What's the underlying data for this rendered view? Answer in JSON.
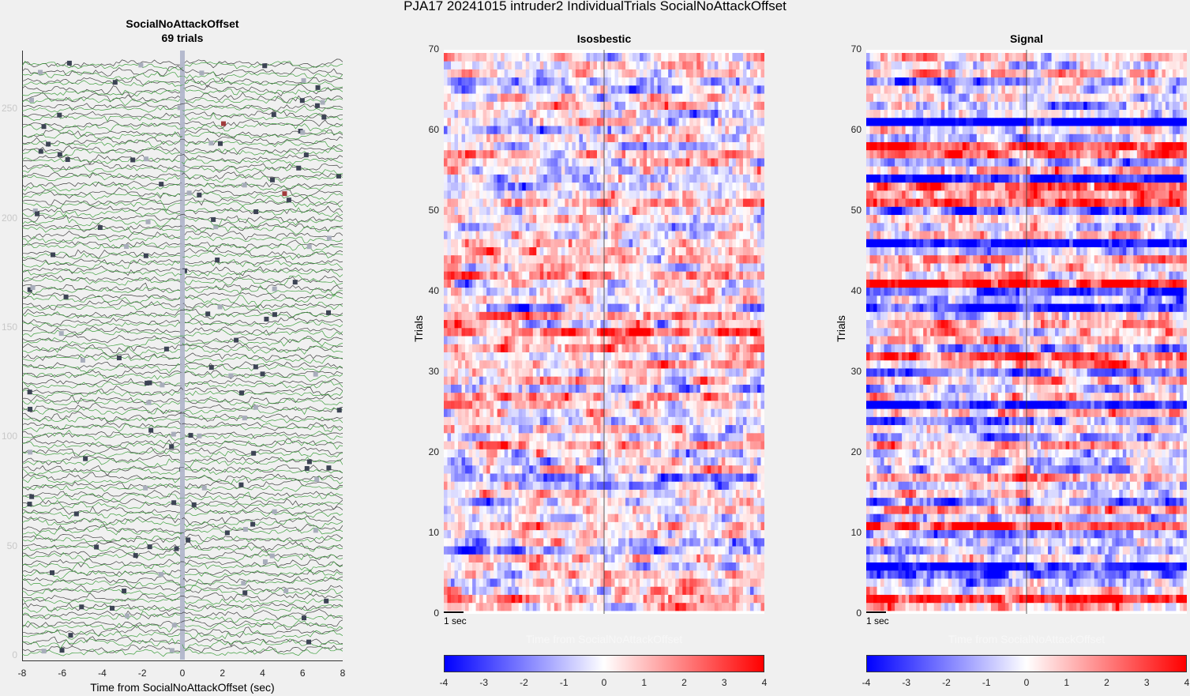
{
  "figure": {
    "title": "PJA17 20241015  intruder2 IndividualTrials SocialNoAttackOffset"
  },
  "chart_data": [
    {
      "type": "line",
      "title": "SocialNoAttackOffset",
      "subtitle": "69 trials",
      "xlabel": "Time from SocialNoAttackOffset (sec)",
      "ylabel": "",
      "xlim": [
        -8,
        8
      ],
      "ylim": [
        0,
        275
      ],
      "x_ticks": [
        "-8",
        "-6",
        "-4",
        "-2",
        "0",
        "2",
        "4",
        "6",
        "8"
      ],
      "y_ticks": [
        "0",
        "50",
        "100",
        "150",
        "200",
        "250"
      ],
      "n_trials": 69,
      "series_colors": {
        "isosbestic": "#3f9f3f",
        "signal": "#404040",
        "event_marker": "#3c4354",
        "center_band": "#aab0c8",
        "highlight_marker": "#a03c3c"
      },
      "grid": false
    },
    {
      "type": "heatmap",
      "title": "Isosbestic",
      "xlabel": "Time from SocialNoAttackOffset",
      "ylabel": "Trials",
      "ylim": [
        0,
        70
      ],
      "y_ticks": [
        "0",
        "10",
        "20",
        "30",
        "40",
        "50",
        "60",
        "70"
      ],
      "scale_bar_label": "1 sec",
      "colormap": [
        "#0000ff",
        "#ffffff",
        "#ff0000"
      ],
      "clim": [
        -4,
        4
      ],
      "colorbar_ticks": [
        "-4",
        "-3",
        "-2",
        "-1",
        "0",
        "1",
        "2",
        "3",
        "4"
      ]
    },
    {
      "type": "heatmap",
      "title": "Signal",
      "xlabel": "Time from SocialNoAttackOffset",
      "ylabel": "Trials",
      "ylim": [
        0,
        70
      ],
      "y_ticks": [
        "0",
        "10",
        "20",
        "30",
        "40",
        "50",
        "60",
        "70"
      ],
      "scale_bar_label": "1 sec",
      "colormap": [
        "#0000ff",
        "#ffffff",
        "#ff0000"
      ],
      "clim": [
        -4,
        4
      ],
      "colorbar_ticks": [
        "-4",
        "-3",
        "-2",
        "-1",
        "0",
        "1",
        "2",
        "3",
        "4"
      ]
    }
  ]
}
